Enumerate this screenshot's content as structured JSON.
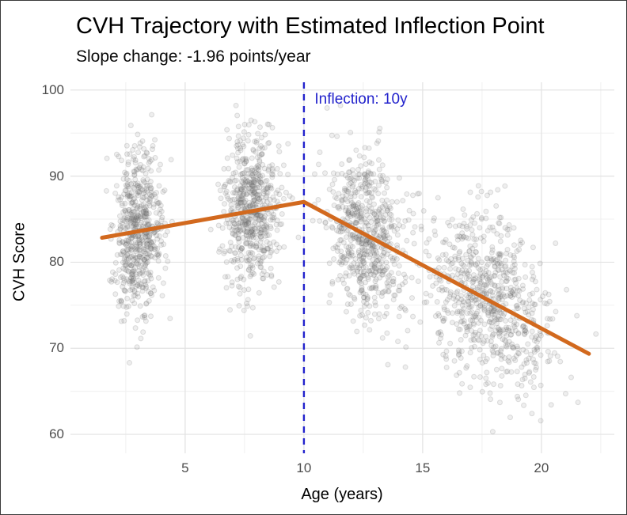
{
  "chart_data": {
    "type": "scatter",
    "title": "CVH Trajectory with Estimated Inflection Point",
    "subtitle": "Slope change: -1.96 points/year",
    "xlabel": "Age (years)",
    "ylabel": "CVH Score",
    "xlim": [
      0.17,
      23.07
    ],
    "ylim": [
      57.8,
      100.9
    ],
    "x_ticks": [
      5,
      10,
      15,
      20
    ],
    "y_ticks": [
      100,
      90,
      80,
      70,
      60
    ],
    "x_minor": [
      2.5,
      7.5,
      12.5,
      17.5,
      22.5
    ],
    "y_minor": [
      95,
      85,
      75,
      65
    ],
    "grid": "on",
    "annotation": {
      "text": "Inflection: 10y",
      "x": 10.45,
      "y": 98.9
    },
    "inflection_line": {
      "x": 10,
      "style": "dashed"
    },
    "trend_line": {
      "points": [
        [
          1.5,
          82.84
        ],
        [
          10,
          87.0
        ],
        [
          22,
          69.36
        ]
      ],
      "inflection_age": 10,
      "value_at_inflection": 87.0,
      "slope_before": 0.49,
      "slope_after": -1.47,
      "slope_change_points_per_year": -1.96
    },
    "scatter_clusters": [
      {
        "n": 620,
        "age_mean": 3.0,
        "age_sd": 0.52,
        "cvh_sd": 4.6
      },
      {
        "n": 630,
        "age_mean": 7.8,
        "age_sd": 0.58,
        "cvh_sd": 4.6
      },
      {
        "n": 650,
        "age_mean": 12.6,
        "age_sd": 0.78,
        "cvh_sd": 4.6
      },
      {
        "n": 760,
        "age_mean": 17.7,
        "age_sd": 1.35,
        "cvh_sd": 4.7
      }
    ],
    "seed": 42,
    "point_radius": 3,
    "colors": {
      "trend": "#D2691E",
      "inflection": "#2222CC",
      "annotation_text": "#2222CC",
      "points": "#808080",
      "grid_major": "#E2E2E2",
      "grid_minor": "#F0F0F0",
      "tick_text": "#4d4d4d",
      "title_text": "#000000",
      "background": "#FFFFFF"
    }
  }
}
